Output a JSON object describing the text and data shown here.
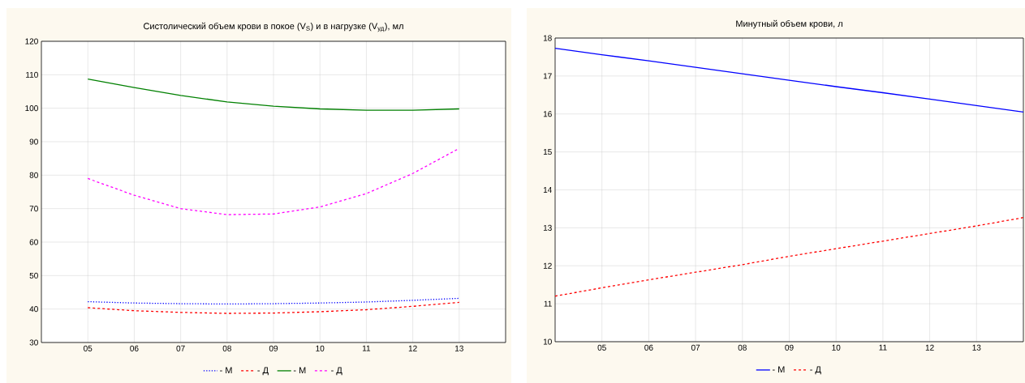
{
  "chart_data": [
    {
      "type": "line",
      "title": "Систолический объем крови в покое (V$_{S}$) и в нагрузке (V$_{уд}$), мл",
      "x": [
        5,
        6,
        7,
        8,
        9,
        10,
        11,
        12,
        13
      ],
      "series": [
        {
          "name": "- М",
          "color": "#0000ff",
          "line_style": "dotted",
          "values": [
            42.2,
            41.8,
            41.6,
            41.5,
            41.6,
            41.8,
            42.1,
            42.6,
            43.2
          ]
        },
        {
          "name": "- Д",
          "color": "#ff0000",
          "line_style": "dashed",
          "values": [
            40.4,
            39.5,
            39.0,
            38.7,
            38.8,
            39.2,
            39.8,
            40.8,
            42.0
          ]
        },
        {
          "name": "- М",
          "color": "#008000",
          "line_style": "solid",
          "values": [
            108.7,
            106.2,
            103.8,
            101.9,
            100.6,
            99.8,
            99.4,
            99.4,
            99.8
          ]
        },
        {
          "name": "- Д",
          "color": "#ff00ff",
          "line_style": "dashed",
          "values": [
            79,
            74,
            70,
            68.2,
            68.4,
            70.5,
            74.5,
            80.5,
            88
          ]
        }
      ],
      "xlim": [
        4,
        14
      ],
      "ylim": [
        30,
        120
      ],
      "xticks": [
        {
          "value": 5,
          "label": "05"
        },
        {
          "value": 6,
          "label": "06"
        },
        {
          "value": 7,
          "label": "07"
        },
        {
          "value": 8,
          "label": "08"
        },
        {
          "value": 9,
          "label": "09"
        },
        10,
        11,
        12,
        13
      ],
      "yticks": [
        30,
        40,
        50,
        60,
        70,
        80,
        90,
        100,
        110,
        120
      ],
      "grid": true,
      "legend": "bottom"
    },
    {
      "type": "line",
      "title": "Минутный объем крови, л",
      "x": [
        4,
        5,
        6,
        7,
        8,
        9,
        10,
        11,
        12,
        13,
        14
      ],
      "series": [
        {
          "name": "- М",
          "color": "#0000ff",
          "line_style": "solid",
          "values": [
            17.73,
            17.56,
            17.4,
            17.23,
            17.06,
            16.89,
            16.72,
            16.56,
            16.39,
            16.22,
            16.05
          ]
        },
        {
          "name": "- Д",
          "color": "#ff0000",
          "line_style": "dashed",
          "values": [
            11.2,
            11.42,
            11.63,
            11.83,
            12.03,
            12.25,
            12.45,
            12.65,
            12.85,
            13.05,
            13.27
          ]
        }
      ],
      "xlim": [
        4,
        14
      ],
      "ylim": [
        10,
        18
      ],
      "xticks": [
        {
          "value": 5,
          "label": "05"
        },
        {
          "value": 6,
          "label": "06"
        },
        {
          "value": 7,
          "label": "07"
        },
        {
          "value": 8,
          "label": "08"
        },
        {
          "value": 9,
          "label": "09"
        },
        10,
        11,
        12,
        13
      ],
      "yticks": [
        10,
        11,
        12,
        13,
        14,
        15,
        16,
        17,
        18
      ],
      "grid": true,
      "legend": "bottom"
    }
  ]
}
